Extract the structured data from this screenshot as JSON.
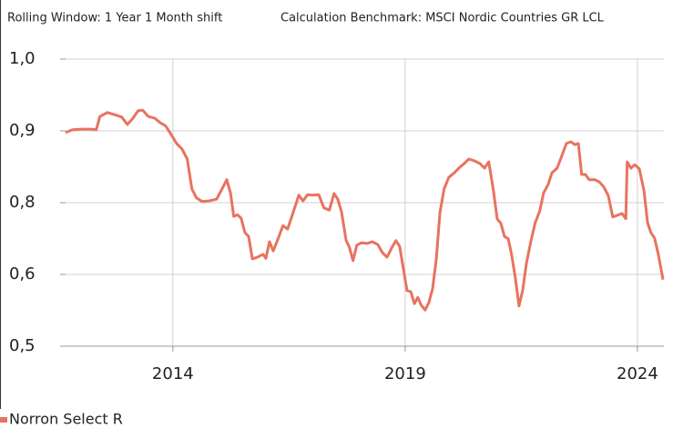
{
  "chart_data": {
    "type": "line",
    "subtitle": "Rolling Window: 1 Year 1 Month shift",
    "annotation": "Calculation Benchmark: MSCI Nordic Countries GR LCL",
    "x": [
      2011.69,
      2011.84,
      2012.04,
      2012.24,
      2012.35,
      2012.43,
      2012.59,
      2012.75,
      2012.9,
      2013.02,
      2013.14,
      2013.25,
      2013.35,
      2013.47,
      2013.61,
      2013.73,
      2013.84,
      2013.96,
      2014.08,
      2014.2,
      2014.31,
      2014.41,
      2014.51,
      2014.63,
      2014.78,
      2014.94,
      2015.06,
      2015.16,
      2015.24,
      2015.31,
      2015.39,
      2015.47,
      2015.55,
      2015.63,
      2015.71,
      2015.82,
      2015.94,
      2016.0,
      2016.08,
      2016.16,
      2016.25,
      2016.37,
      2016.47,
      2016.57,
      2016.71,
      2016.8,
      2016.9,
      2017.0,
      2017.14,
      2017.25,
      2017.37,
      2017.47,
      2017.55,
      2017.63,
      2017.73,
      2017.8,
      2017.88,
      2017.96,
      2018.06,
      2018.18,
      2018.29,
      2018.41,
      2018.51,
      2018.61,
      2018.71,
      2018.8,
      2018.88,
      2018.96,
      2019.04,
      2019.12,
      2019.2,
      2019.27,
      2019.35,
      2019.43,
      2019.51,
      2019.59,
      2019.67,
      2019.75,
      2019.84,
      2019.94,
      2020.06,
      2020.18,
      2020.27,
      2020.37,
      2020.49,
      2020.61,
      2020.71,
      2020.8,
      2020.9,
      2020.98,
      2021.06,
      2021.14,
      2021.22,
      2021.29,
      2021.37,
      2021.45,
      2021.53,
      2021.61,
      2021.71,
      2021.8,
      2021.9,
      2021.98,
      2022.08,
      2022.16,
      2022.27,
      2022.37,
      2022.47,
      2022.57,
      2022.65,
      2022.73,
      2022.8,
      2022.88,
      2022.96,
      2023.08,
      2023.18,
      2023.27,
      2023.37,
      2023.47,
      2023.57,
      2023.67,
      2023.75,
      2023.78,
      2023.86,
      2023.94,
      2024.04,
      2024.14,
      2024.22,
      2024.29,
      2024.37,
      2024.45,
      2024.55
    ],
    "series": [
      {
        "name": "Norron Select R",
        "color": "#e8735f",
        "values": [
          0.872,
          0.877,
          0.878,
          0.878,
          0.877,
          0.9,
          0.907,
          0.903,
          0.899,
          0.886,
          0.897,
          0.91,
          0.911,
          0.9,
          0.897,
          0.889,
          0.884,
          0.869,
          0.853,
          0.843,
          0.826,
          0.774,
          0.758,
          0.752,
          0.753,
          0.756,
          0.774,
          0.79,
          0.767,
          0.726,
          0.729,
          0.723,
          0.698,
          0.691,
          0.652,
          0.655,
          0.66,
          0.653,
          0.682,
          0.666,
          0.684,
          0.71,
          0.704,
          0.728,
          0.763,
          0.753,
          0.764,
          0.763,
          0.764,
          0.741,
          0.737,
          0.766,
          0.756,
          0.734,
          0.684,
          0.672,
          0.649,
          0.676,
          0.68,
          0.679,
          0.682,
          0.677,
          0.663,
          0.655,
          0.671,
          0.684,
          0.674,
          0.636,
          0.597,
          0.595,
          0.574,
          0.585,
          0.571,
          0.563,
          0.576,
          0.6,
          0.652,
          0.733,
          0.774,
          0.794,
          0.802,
          0.812,
          0.818,
          0.826,
          0.823,
          0.818,
          0.81,
          0.821,
          0.771,
          0.722,
          0.714,
          0.691,
          0.687,
          0.66,
          0.62,
          0.57,
          0.597,
          0.644,
          0.684,
          0.715,
          0.736,
          0.767,
          0.782,
          0.802,
          0.81,
          0.831,
          0.853,
          0.856,
          0.851,
          0.853,
          0.799,
          0.799,
          0.79,
          0.79,
          0.786,
          0.778,
          0.763,
          0.725,
          0.728,
          0.731,
          0.722,
          0.821,
          0.81,
          0.816,
          0.809,
          0.771,
          0.715,
          0.698,
          0.688,
          0.66,
          0.616
        ]
      }
    ],
    "xlim": [
      2011.69,
      2024.57
    ],
    "xticks": [
      2014,
      2019,
      2024
    ],
    "ylim": [
      0.5,
      1.0
    ],
    "yticks": [
      {
        "value": 0.5,
        "label": "0,5"
      },
      {
        "value": 0.625,
        "label": "0,6"
      },
      {
        "value": 0.75,
        "label": "0,8"
      },
      {
        "value": 0.875,
        "label": "0,9"
      },
      {
        "value": 1.0,
        "label": "1,0"
      }
    ],
    "grid": true
  }
}
